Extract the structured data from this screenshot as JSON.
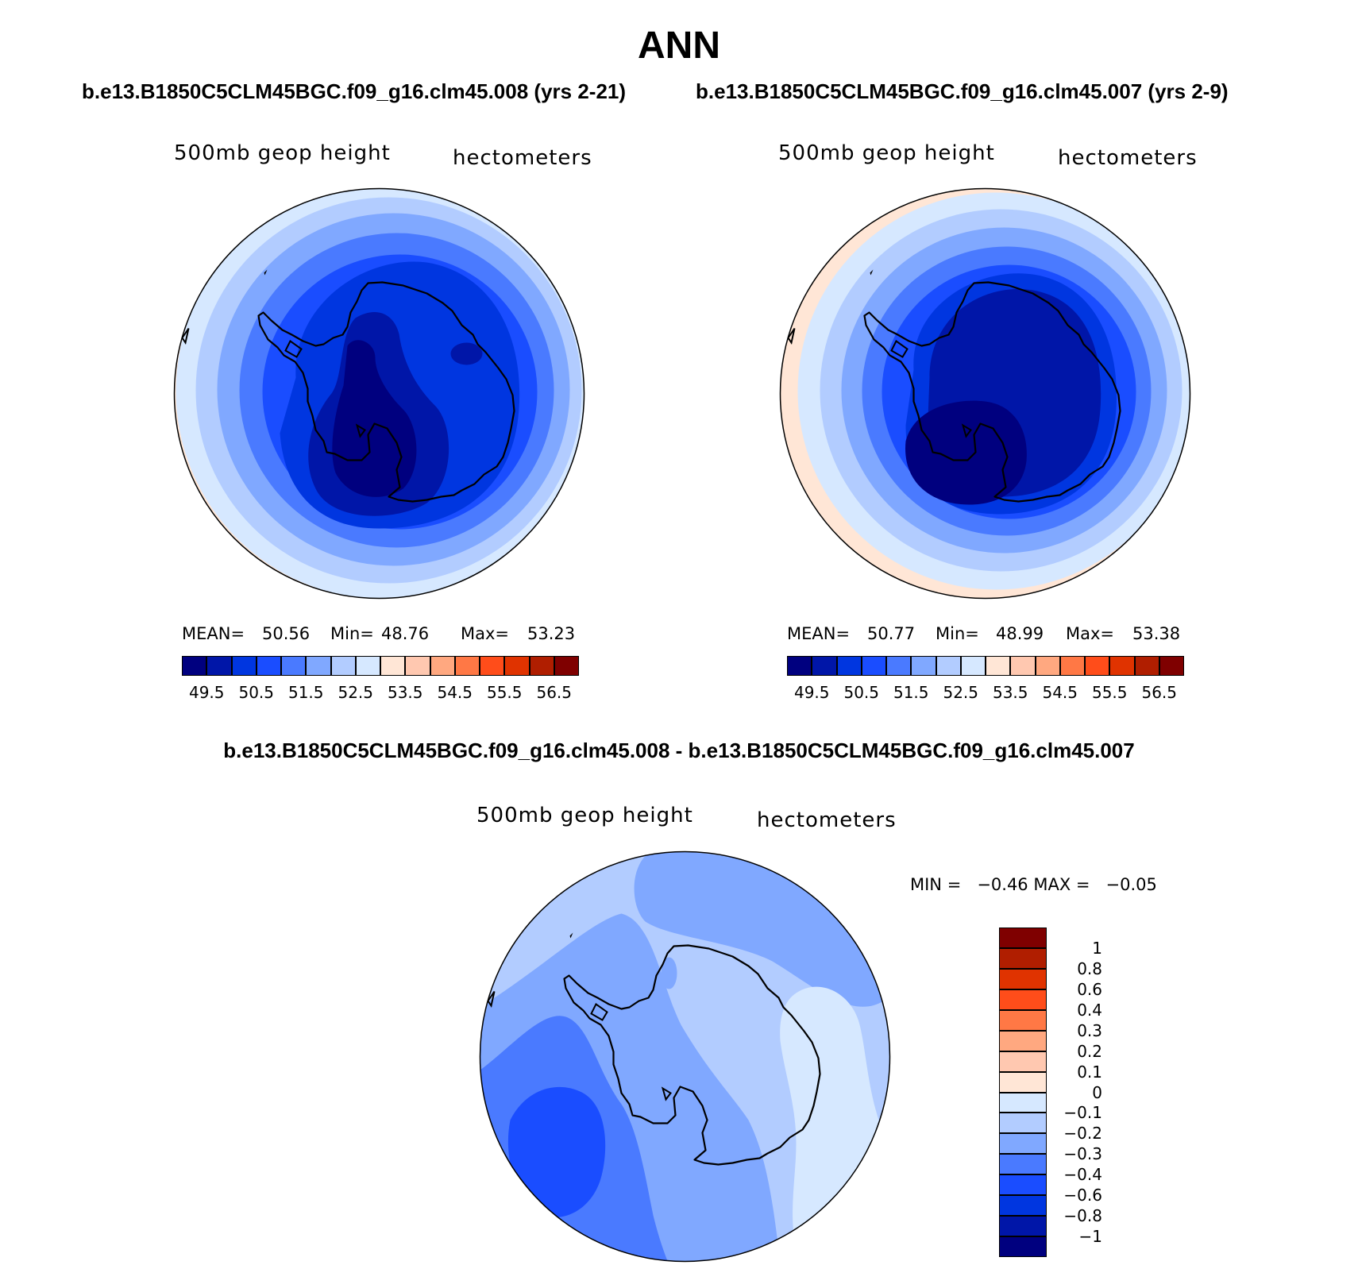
{
  "page": {
    "title": "ANN",
    "left_case_title": "b.e13.B1850C5CLM45BGC.f09_g16.clm45.008 (yrs 2-21)",
    "right_case_title": "b.e13.B1850C5CLM45BGC.f09_g16.clm45.007 (yrs 2-9)",
    "diff_title": "b.e13.B1850C5CLM45BGC.f09_g16.clm45.008 - b.e13.B1850C5CLM45BGC.f09_g16.clm45.007"
  },
  "panels": [
    {
      "variable": "500mb geop height",
      "units": "hectometers",
      "mean_label": "MEAN=",
      "mean_value": "50.56",
      "min_label": "Min=",
      "min_value": "48.76",
      "max_label": "Max=",
      "max_value": "53.23",
      "colorbar_labels": [
        "49.5",
        "50.5",
        "51.5",
        "52.5",
        "53.5",
        "54.5",
        "55.5",
        "56.5"
      ]
    },
    {
      "variable": "500mb geop height",
      "units": "hectometers",
      "mean_label": "MEAN=",
      "mean_value": "50.77",
      "min_label": "Min=",
      "min_value": "48.99",
      "max_label": "Max=",
      "max_value": "53.38",
      "colorbar_labels": [
        "49.5",
        "50.5",
        "51.5",
        "52.5",
        "53.5",
        "54.5",
        "55.5",
        "56.5"
      ]
    }
  ],
  "diff_panel": {
    "variable": "500mb geop height",
    "units": "hectometers",
    "min_max_text": "MIN =   −0.46 MAX =   −0.05",
    "colorbar_labels": [
      "1",
      "0.8",
      "0.6",
      "0.4",
      "0.3",
      "0.2",
      "0.1",
      "0",
      "−0.1",
      "−0.2",
      "−0.3",
      "−0.4",
      "−0.6",
      "−0.8",
      "−1"
    ]
  },
  "colors": {
    "abs_scale": [
      "#00007f",
      "#0016a8",
      "#0036e0",
      "#1a4dff",
      "#4a7aff",
      "#80a8ff",
      "#b2ccff",
      "#d6e8ff",
      "#ffe6d6",
      "#ffc8b0",
      "#ffa880",
      "#ff7845",
      "#ff4d1a",
      "#e03300",
      "#b01e00",
      "#7f0000"
    ],
    "diff_scale": [
      "#7f0000",
      "#b01e00",
      "#e03300",
      "#ff4d1a",
      "#ff7845",
      "#ffa880",
      "#ffc8b0",
      "#ffe6d6",
      "#d6e8ff",
      "#b2ccff",
      "#80a8ff",
      "#4a7aff",
      "#1a4dff",
      "#0036e0",
      "#0016a8",
      "#00007f"
    ]
  }
}
